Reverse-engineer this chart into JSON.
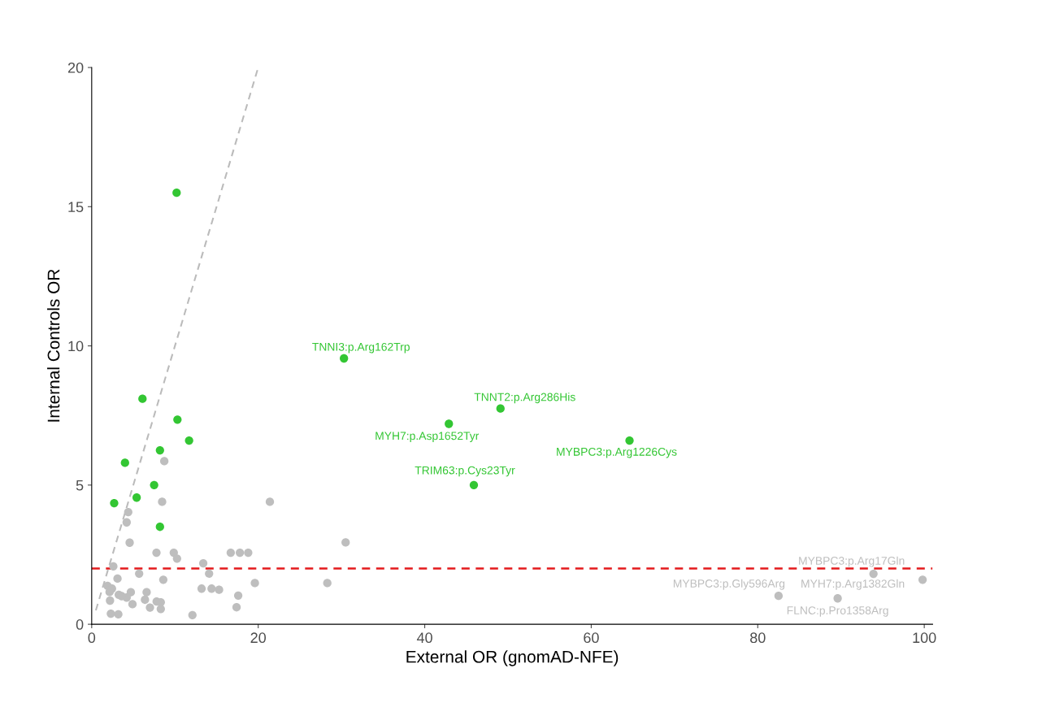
{
  "chart_data": {
    "type": "scatter",
    "xlabel": "External OR (gnomAD-NFE)",
    "ylabel": "Internal Controls OR",
    "xlim": [
      0,
      101
    ],
    "ylim": [
      0,
      20
    ],
    "xticks": [
      0,
      20,
      40,
      60,
      80,
      100
    ],
    "yticks": [
      0,
      5,
      10,
      15,
      20
    ],
    "grid": false,
    "legend": false,
    "marker": "circle",
    "series": [
      {
        "type": "line",
        "line_style": "dashed",
        "marker": "none",
        "color": "#bbbbbb",
        "x": [
          0.5,
          20
        ],
        "values": [
          0.5,
          20
        ]
      },
      {
        "color": "#bebebe",
        "x": [
          8.72,
          8.46,
          21.4,
          4.39,
          4.2,
          4.56,
          7.78,
          9.86,
          10.25,
          16.7,
          17.8,
          18.8,
          2.6,
          13.4,
          5.7,
          14.1,
          3.1,
          8.6,
          19.6,
          1.9,
          2.44,
          2.15,
          13.2,
          14.4,
          15.3,
          3.25,
          3.9,
          4.7,
          6.6,
          4.2,
          2.2,
          6.4,
          17.6,
          4.9,
          7.8,
          8.3,
          7.0,
          8.3,
          17.4,
          2.3,
          3.2,
          12.1,
          3.6,
          30.5,
          28.3,
          82.5,
          89.6,
          93.9,
          99.8
        ],
        "values": [
          5.86,
          4.4,
          4.4,
          4.03,
          3.66,
          2.93,
          2.57,
          2.57,
          2.36,
          2.57,
          2.57,
          2.57,
          2.08,
          2.19,
          1.82,
          1.82,
          1.64,
          1.6,
          1.48,
          1.38,
          1.28,
          1.16,
          1.28,
          1.28,
          1.24,
          1.06,
          null,
          1.15,
          1.15,
          0.96,
          0.85,
          0.88,
          1.03,
          0.72,
          0.82,
          0.79,
          0.6,
          0.55,
          0.61,
          0.38,
          0.36,
          0.33,
          1.01,
          2.94,
          1.48,
          1.02,
          0.93,
          1.81,
          1.6
        ]
      },
      {
        "color": "#33c633",
        "x": [
          10.2,
          6.1,
          10.3,
          11.7,
          8.2,
          4.0,
          7.5,
          5.4,
          2.7,
          8.2,
          30.3,
          49.1,
          42.9,
          64.6,
          45.9
        ],
        "values": [
          15.5,
          8.1,
          7.35,
          6.6,
          6.25,
          5.8,
          5.0,
          4.55,
          4.35,
          3.5,
          9.55,
          7.75,
          7.2,
          6.6,
          5.0
        ]
      }
    ],
    "ref_lines": [
      {
        "axis": "y",
        "value": 2,
        "color": "#e31a1c",
        "line_style": "dashed"
      }
    ],
    "annotations": [
      {
        "text": "TNNI3:p.Arg162Trp",
        "x": 30.3,
        "y": 9.55
      },
      {
        "text": "TNNT2:p.Arg286His",
        "x": 49.1,
        "y": 7.75
      },
      {
        "text": "MYH7:p.Asp1652Tyr",
        "x": 42.9,
        "y": 7.2
      },
      {
        "text": "MYBPC3:p.Arg1226Cys",
        "x": 64.6,
        "y": 6.6
      },
      {
        "text": "TRIM63:p.Cys23Tyr",
        "x": 45.9,
        "y": 5.0
      },
      {
        "text": "MYBPC3:p.Gly596Arg",
        "x": 82.5,
        "y": 1.02
      },
      {
        "text": "FLNC:p.Pro1358Arg",
        "x": 89.6,
        "y": 0.93
      },
      {
        "text": "MYH7:p.Arg1382Gln",
        "x": 99.8,
        "y": 1.6
      },
      {
        "text": "MYBPC3:p.Arg17Gln",
        "x": 93.9,
        "y": 1.81
      }
    ]
  }
}
